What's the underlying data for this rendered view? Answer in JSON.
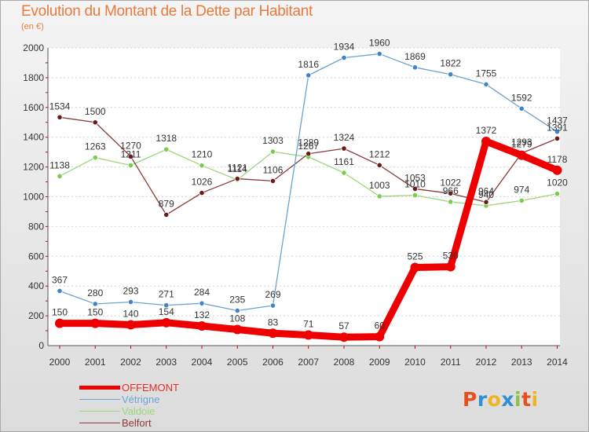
{
  "title": "Evolution du Montant de la Dette par Habitant",
  "subtitle": "(en €)",
  "brand": {
    "letters": [
      "P",
      "r",
      "o",
      "x",
      "i",
      "t",
      "i"
    ],
    "colors": [
      "#e94e1b",
      "#2e8fd6",
      "#f0b323",
      "#2e8fd6",
      "#8bc34a",
      "#e94e1b",
      "#f0b323"
    ]
  },
  "chart_data": {
    "type": "line",
    "x": [
      "2000",
      "2001",
      "2002",
      "2003",
      "2004",
      "2005",
      "2006",
      "2007",
      "2008",
      "2009",
      "2010",
      "2011",
      "2012",
      "2013",
      "2014"
    ],
    "ylim": [
      0,
      2000
    ],
    "yticks": [
      "0",
      "200",
      "400",
      "600",
      "800",
      "1000",
      "1200",
      "1400",
      "1600",
      "1800",
      "2000"
    ],
    "grid": true,
    "legend_position": "bottom-left",
    "series": [
      {
        "name": "OFFEMONT",
        "color": "#ee0000",
        "marker": "#ee0000",
        "values": [
          150,
          150,
          140,
          154,
          132,
          108,
          83,
          71,
          57,
          60,
          525,
          530,
          1372,
          1279,
          1178
        ],
        "labels": [
          "150",
          "150",
          "140",
          "154",
          "132",
          "108",
          "83",
          "71",
          "57",
          "60",
          "525",
          "530",
          "1372",
          "1279",
          "1178"
        ]
      },
      {
        "name": "Vétrigne",
        "color": "#6aa3d5",
        "marker": "#3f84c7",
        "values": [
          367,
          280,
          293,
          271,
          284,
          235,
          269,
          1816,
          1934,
          1960,
          1869,
          1822,
          1755,
          1592,
          1437
        ],
        "labels": [
          "367",
          "280",
          "293",
          "271",
          "284",
          "235",
          "269",
          "1816",
          "1934",
          "1960",
          "1869",
          "1822",
          "1755",
          "1592",
          "1437"
        ]
      },
      {
        "name": "Valdoie",
        "color": "#9ad77a",
        "marker": "#7ccb4e",
        "values": [
          1138,
          1263,
          1211,
          1318,
          1210,
          1114,
          1303,
          1267,
          1161,
          1003,
          1010,
          966,
          940,
          974,
          1020
        ],
        "labels": [
          "1138",
          "1263",
          "1211",
          "1318",
          "1210",
          "1114",
          "1303",
          "1267",
          "1161",
          "1003",
          "1010",
          "966",
          "940",
          "974",
          "1020"
        ]
      },
      {
        "name": "Belfort",
        "color": "#8b3a3a",
        "marker": "#6b1a1a",
        "values": [
          1534,
          1500,
          1270,
          879,
          1026,
          1121,
          1106,
          1289,
          1324,
          1212,
          1053,
          1022,
          964,
          1293,
          1391
        ],
        "labels": [
          "1534",
          "1500",
          "1270",
          "879",
          "1026",
          "1121",
          "1106",
          "1289",
          "1324",
          "1212",
          "1053",
          "1022",
          "964",
          "1293",
          "1391"
        ]
      }
    ]
  }
}
